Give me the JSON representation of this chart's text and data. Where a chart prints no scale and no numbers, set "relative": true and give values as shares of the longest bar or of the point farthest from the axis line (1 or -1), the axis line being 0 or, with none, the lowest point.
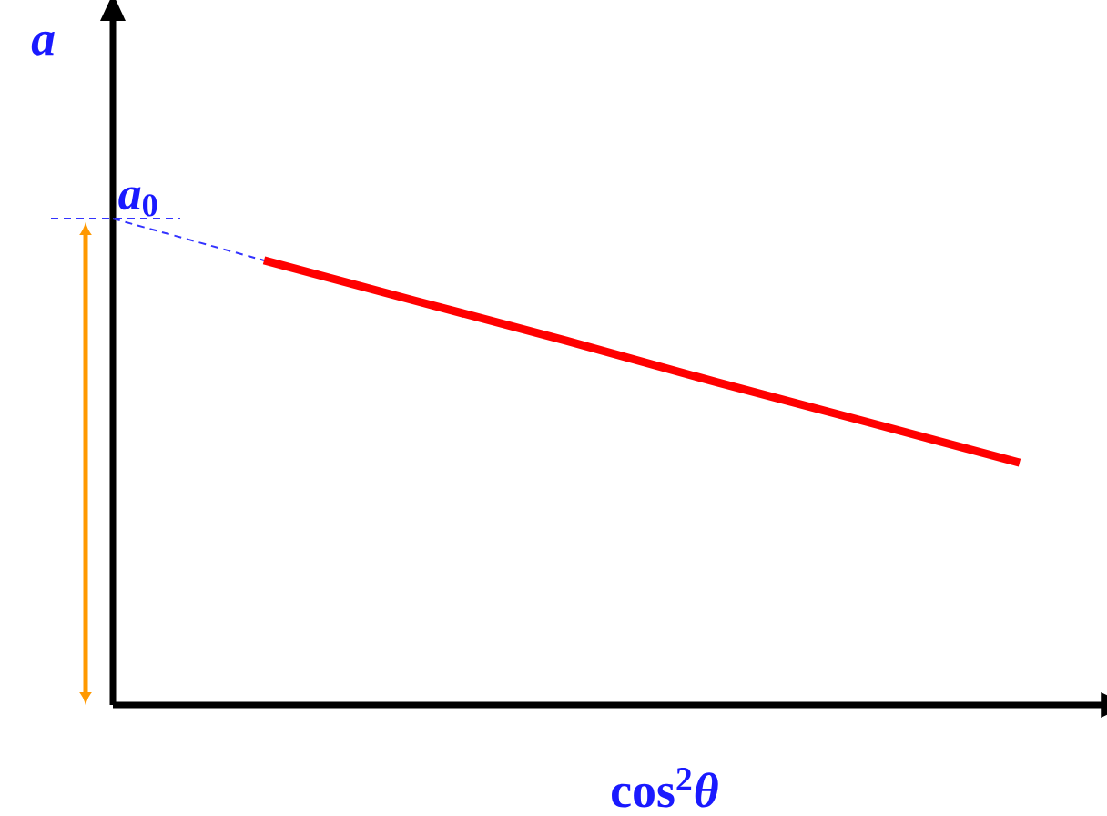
{
  "chart_data": {
    "type": "line",
    "relative": true,
    "xlabel": "cos$^{2}$*θ*",
    "ylabel": "a",
    "categories": [
      null,
      null,
      null,
      null,
      null,
      null,
      null
    ],
    "series": [
      {
        "color": "#ff0000",
        "values": [
          null,
          0.914,
          0.831,
          0.749,
          0.663,
          0.581,
          0.498
        ]
      },
      {
        "color": "#3333ff",
        "line_style": "dashed",
        "values": [
          1.0,
          0.914,
          null,
          null,
          null,
          null,
          null
        ]
      }
    ],
    "annotations": [
      {
        "text": "*a*$_{0}$",
        "y": 1.0
      }
    ],
    "marker": "none"
  }
}
